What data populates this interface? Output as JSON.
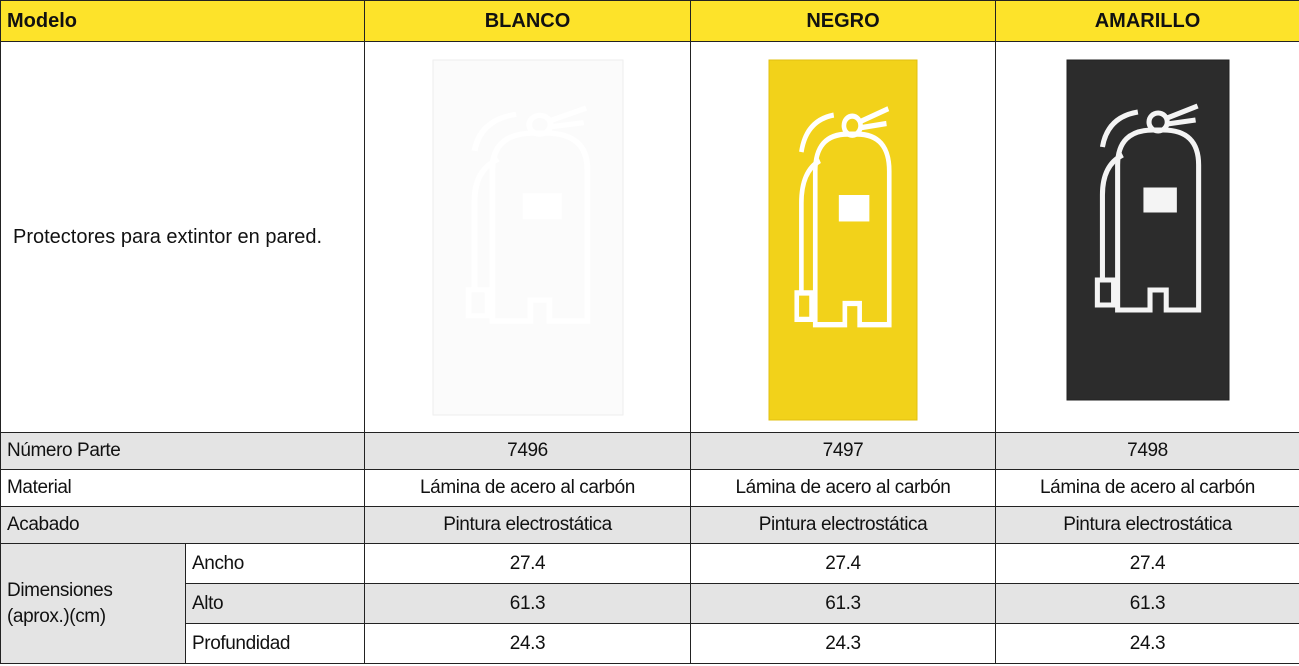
{
  "header": {
    "label": "Modelo",
    "columns": [
      "BLANCO",
      "NEGRO",
      "AMARILLO"
    ]
  },
  "description": "Protectores para extintor en pared.",
  "rows": [
    {
      "label": "Número Parte",
      "values": [
        7496,
        7497,
        7498
      ]
    },
    {
      "label": "Material",
      "values": [
        "Lámina de acero al carbón",
        "Lámina de acero al carbón",
        "Lámina de acero al carbón"
      ]
    },
    {
      "label": "Acabado",
      "values": [
        "Pintura electrostática",
        "Pintura electrostática",
        "Pintura electrostática"
      ]
    }
  ],
  "dimensions": {
    "label": "Dimensiones (aprox.)(cm)",
    "rows": [
      {
        "label": "Ancho",
        "values": [
          27.4,
          27.4,
          27.4
        ]
      },
      {
        "label": "Alto",
        "values": [
          61.3,
          61.3,
          61.3
        ]
      },
      {
        "label": "Profundidad",
        "values": [
          24.3,
          24.3,
          24.3
        ]
      }
    ]
  }
}
